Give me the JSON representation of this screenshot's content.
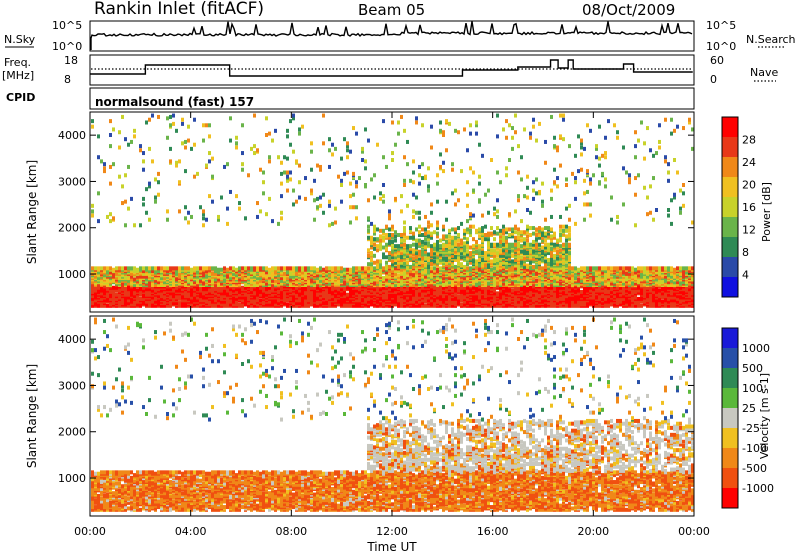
{
  "header": {
    "station": "Rankin Inlet (fitACF)",
    "beam": "Beam 05",
    "date": "08/Oct/2009"
  },
  "nsky_panel": {
    "left_label": "N.Sky",
    "left_tick_top": "10^5",
    "left_tick_bottom": "10^0",
    "right_tick_top": "10^5",
    "right_tick_bottom": "10^0",
    "right_label": "N.Search"
  },
  "freq_panel": {
    "left_label_line1": "Freq.",
    "left_label_line2": "[MHz]",
    "left_tick_top": "18",
    "left_tick_bottom": "8",
    "right_tick_top": "60",
    "right_tick_bottom": "0",
    "right_label": "Nave"
  },
  "cpid_panel": {
    "label": "CPID",
    "text": "normalsound (fast) 157"
  },
  "colors": {
    "power_scale": [
      "#1010e0",
      "#2a4aa8",
      "#2f8a55",
      "#6ab44a",
      "#c8d22a",
      "#f0c020",
      "#f08818",
      "#e83818",
      "#ff0000"
    ],
    "velocity_scale": [
      "#1a1ad8",
      "#2850a8",
      "#2f8a55",
      "#5ab83a",
      "#c8c8c0",
      "#f0c020",
      "#f08818",
      "#f05010",
      "#ff0000"
    ],
    "groundscatter": "#c8c8c0"
  },
  "chart_data": [
    {
      "type": "heatmap",
      "title": "",
      "xlabel": "",
      "ylabel": "Slant Range [km]",
      "x_ticks": [
        "00:00",
        "04:00",
        "08:00",
        "12:00",
        "16:00",
        "20:00",
        "00:00"
      ],
      "y_ticks": [
        "1000",
        "2000",
        "3000",
        "4000"
      ],
      "ylim": [
        180,
        4500
      ],
      "colorbar": {
        "label": "Power [dB]",
        "ticks": [
          "4",
          "8",
          "12",
          "16",
          "20",
          "24",
          "28"
        ],
        "range": [
          0,
          30
        ]
      },
      "bands": [
        {
          "hour_start": 0,
          "hour_end": 24,
          "range_low": 250,
          "range_high": 1100,
          "level": "strong"
        },
        {
          "hour_start": 11,
          "hour_end": 19,
          "range_low": 1100,
          "range_high": 2000,
          "level": "moderate"
        },
        {
          "hour_start": 0,
          "hour_end": 24,
          "range_low": 2000,
          "range_high": 4400,
          "level": "sparse"
        }
      ]
    },
    {
      "type": "heatmap",
      "title": "",
      "xlabel": "Time UT",
      "ylabel": "Slant Range [km]",
      "x_ticks": [
        "00:00",
        "04:00",
        "08:00",
        "12:00",
        "16:00",
        "20:00",
        "00:00"
      ],
      "y_ticks": [
        "1000",
        "2000",
        "3000",
        "4000"
      ],
      "ylim": [
        180,
        4500
      ],
      "colorbar": {
        "label": "Velocity [m s-1]",
        "ticks": [
          "1000",
          "500",
          "100",
          "25",
          "-25",
          "-100",
          "-500",
          "-1000"
        ],
        "range": [
          -1000,
          1000
        ]
      },
      "bands": [
        {
          "hour_start": 0,
          "hour_end": 24,
          "range_low": 250,
          "range_high": 1100,
          "level": "negative"
        },
        {
          "hour_start": 11,
          "hour_end": 24,
          "range_low": 1100,
          "range_high": 2200,
          "level": "groundscatter"
        },
        {
          "hour_start": 0,
          "hour_end": 24,
          "range_low": 2200,
          "range_high": 4400,
          "level": "sparse"
        }
      ]
    }
  ]
}
